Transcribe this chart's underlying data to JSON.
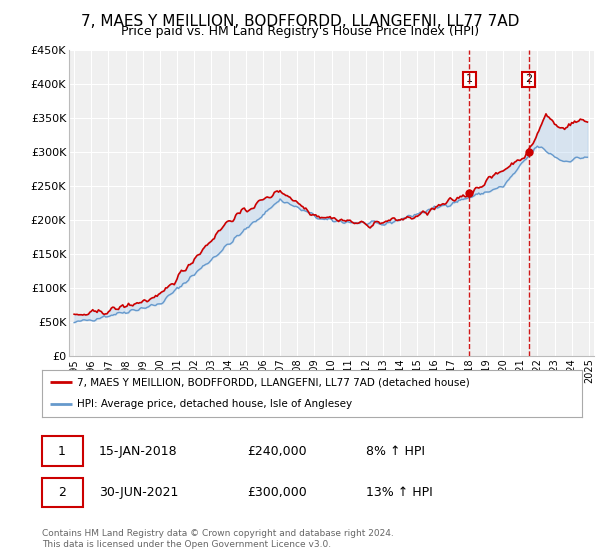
{
  "title": "7, MAES Y MEILLION, BODFFORDD, LLANGEFNI, LL77 7AD",
  "subtitle": "Price paid vs. HM Land Registry's House Price Index (HPI)",
  "ylabel_ticks": [
    "£0",
    "£50K",
    "£100K",
    "£150K",
    "£200K",
    "£250K",
    "£300K",
    "£350K",
    "£400K",
    "£450K"
  ],
  "ytick_values": [
    0,
    50000,
    100000,
    150000,
    200000,
    250000,
    300000,
    350000,
    400000,
    450000
  ],
  "ylim": [
    0,
    450000
  ],
  "xlim_start": 1994.7,
  "xlim_end": 2025.3,
  "sale1_date": "15-JAN-2018",
  "sale1_x": 2018.04,
  "sale1_price": 240000,
  "sale1_pct": "8%",
  "sale2_date": "30-JUN-2021",
  "sale2_x": 2021.5,
  "sale2_price": 300000,
  "sale2_pct": "13%",
  "line_color_red": "#cc0000",
  "line_color_blue": "#6699cc",
  "fill_color": "#aaccee",
  "marker_box_color": "#cc0000",
  "dashed_color": "#cc0000",
  "background_plot": "#f0f0f0",
  "grid_color": "#ffffff",
  "legend_label_red": "7, MAES Y MEILLION, BODFFORDD, LLANGEFNI, LL77 7AD (detached house)",
  "legend_label_blue": "HPI: Average price, detached house, Isle of Anglesey",
  "footer": "Contains HM Land Registry data © Crown copyright and database right 2024.\nThis data is licensed under the Open Government Licence v3.0.",
  "title_fontsize": 11,
  "subtitle_fontsize": 9
}
